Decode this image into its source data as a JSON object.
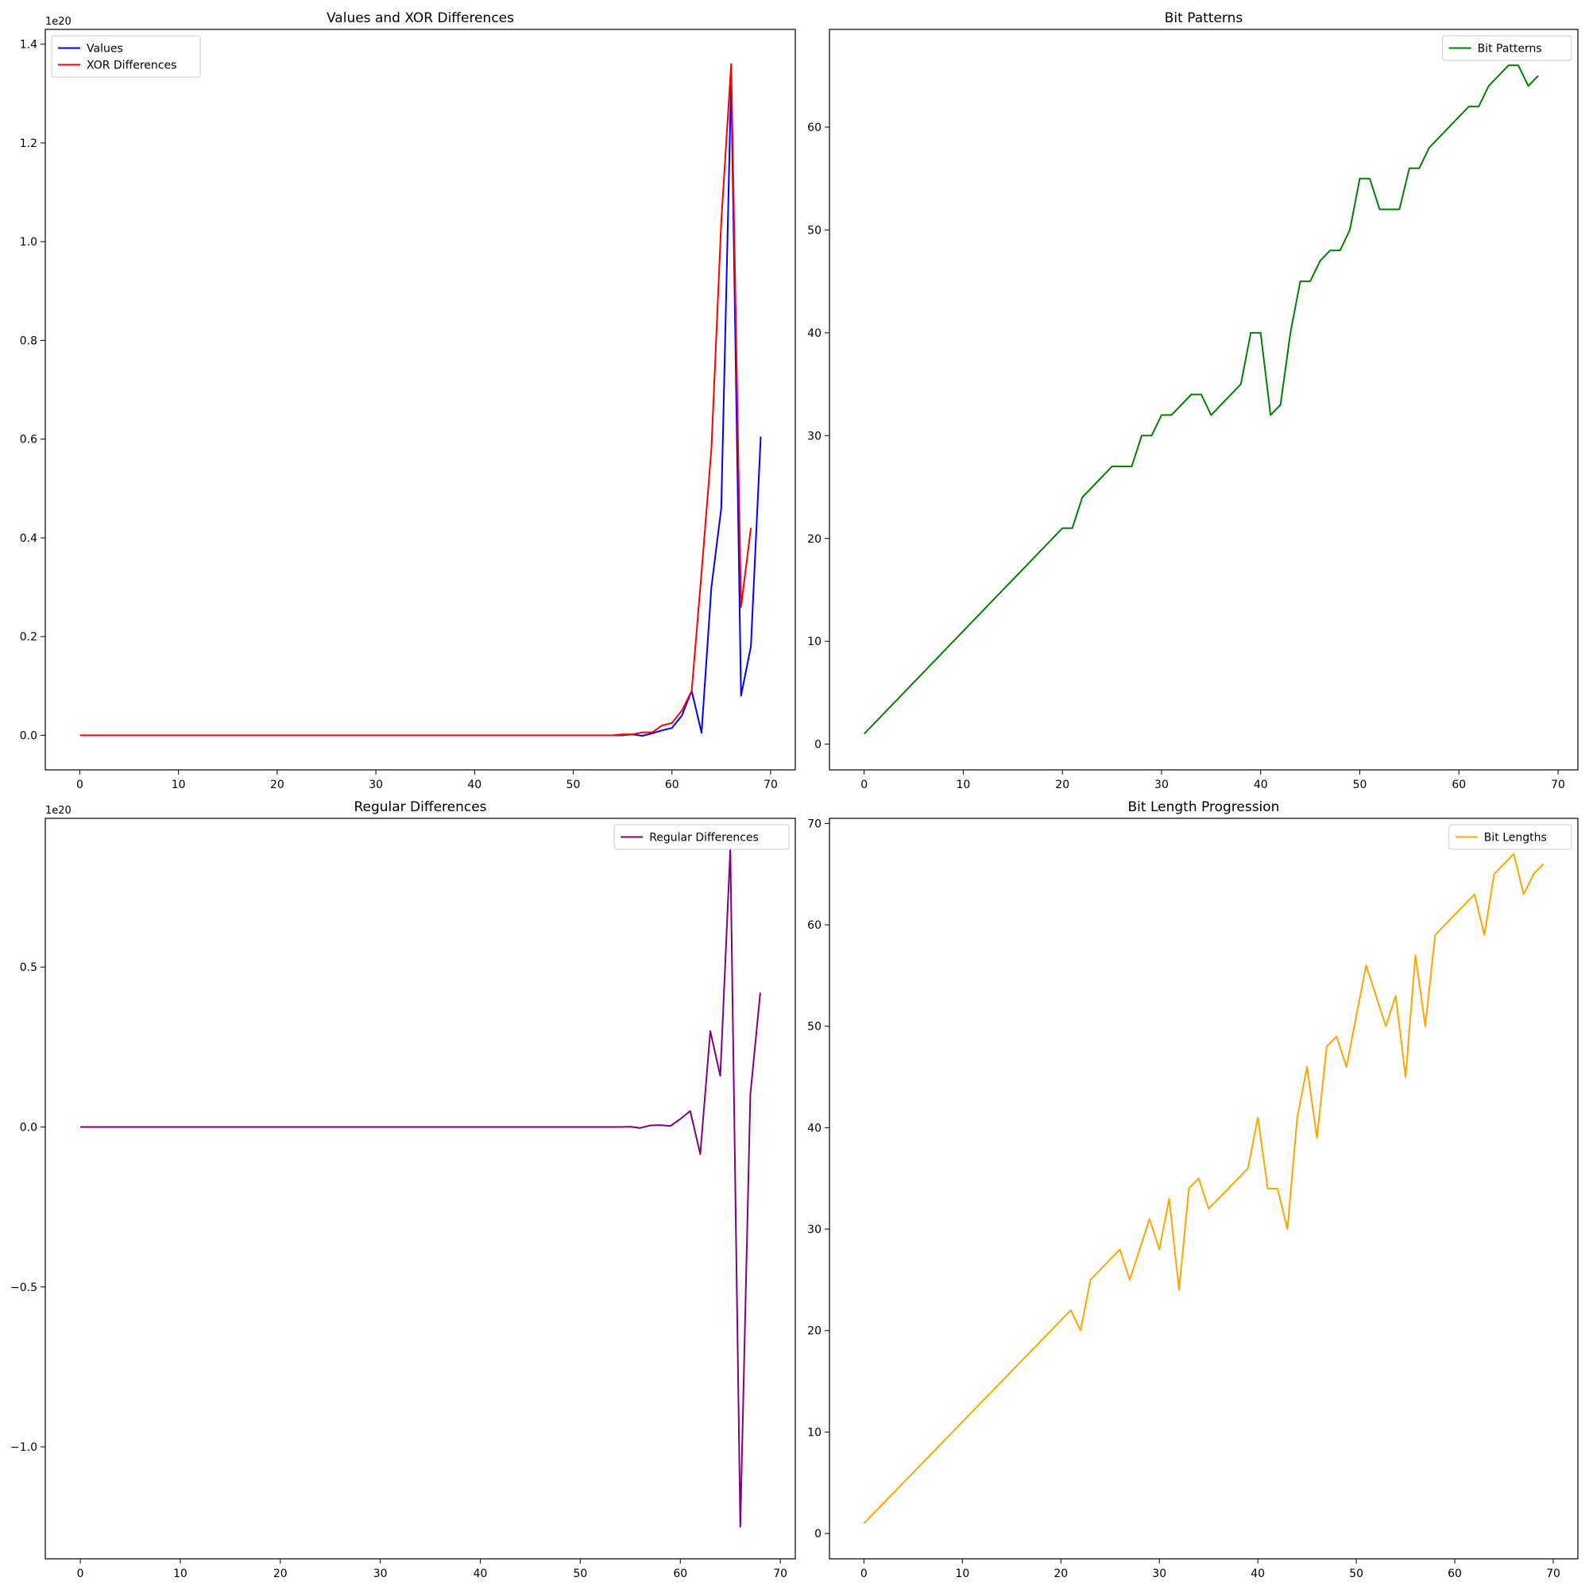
{
  "chart_data": [
    {
      "type": "line",
      "title": "Values and XOR Differences",
      "xlim": [
        -3.5,
        72.5
      ],
      "ylim": [
        -0.07,
        1.43
      ],
      "offset_text": "1e20",
      "xticks": [
        0,
        10,
        20,
        30,
        40,
        50,
        60,
        70
      ],
      "yticks": [
        0.0,
        0.2,
        0.4,
        0.6,
        0.8,
        1.0,
        1.2,
        1.4
      ],
      "ytick_labels": [
        "0.0",
        "0.2",
        "0.4",
        "0.6",
        "0.8",
        "1.0",
        "1.2",
        "1.4"
      ],
      "legend_position": "upper-left",
      "series": [
        {
          "name": "Values",
          "color": "#0000ff",
          "x": [
            0,
            50,
            52,
            54,
            55,
            56,
            57,
            58,
            59,
            60,
            61,
            62,
            63,
            64,
            65,
            66,
            67,
            68,
            69
          ],
          "y": [
            0.0,
            0.0,
            0.0,
            0.0,
            0.0,
            0.002,
            -0.001,
            0.004,
            0.01,
            0.015,
            0.04,
            0.09,
            0.005,
            0.3,
            0.46,
            1.33,
            0.08,
            0.18,
            0.605
          ]
        },
        {
          "name": "XOR Differences",
          "color": "#ff0000",
          "x": [
            0,
            50,
            52,
            54,
            55,
            56,
            57,
            58,
            59,
            60,
            61,
            62,
            63,
            64,
            65,
            66,
            67,
            68
          ],
          "y": [
            0.0,
            0.0,
            0.0,
            0.0,
            0.002,
            0.002,
            0.006,
            0.006,
            0.02,
            0.025,
            0.05,
            0.09,
            0.33,
            0.58,
            1.04,
            1.36,
            0.26,
            0.42
          ]
        }
      ]
    },
    {
      "type": "line",
      "title": "Bit Patterns",
      "xlim": [
        -3.5,
        72
      ],
      "ylim": [
        -2.5,
        69.5
      ],
      "offset_text": "",
      "xticks": [
        0,
        10,
        20,
        30,
        40,
        50,
        60,
        70
      ],
      "yticks": [
        0,
        10,
        20,
        30,
        40,
        50,
        60
      ],
      "ytick_labels": [
        "0",
        "10",
        "20",
        "30",
        "40",
        "50",
        "60"
      ],
      "legend_position": "upper-right",
      "series": [
        {
          "name": "Bit Patterns",
          "color": "#008000",
          "x": [
            0,
            20,
            21,
            22,
            25,
            26,
            27,
            28,
            29,
            30,
            31,
            33,
            34,
            35,
            38,
            39,
            40,
            41,
            42,
            43,
            44,
            45,
            46,
            47,
            48,
            49,
            50,
            51,
            52,
            53,
            54,
            55,
            56,
            57,
            61,
            62,
            63,
            65,
            66,
            67,
            68
          ],
          "y": [
            1,
            21,
            21,
            24,
            27,
            27,
            27,
            30,
            30,
            32,
            32,
            34,
            34,
            32,
            35,
            40,
            40,
            32,
            33,
            40,
            45,
            45,
            47,
            48,
            48,
            50,
            55,
            55,
            52,
            52,
            52,
            56,
            56,
            58,
            62,
            62,
            64,
            66,
            66,
            64,
            65
          ]
        }
      ]
    },
    {
      "type": "line",
      "title": "Regular Differences",
      "xlim": [
        -3.5,
        71.5
      ],
      "ylim": [
        -1.35,
        0.965
      ],
      "offset_text": "1e20",
      "xticks": [
        0,
        10,
        20,
        30,
        40,
        50,
        60,
        70
      ],
      "yticks": [
        -1.0,
        -0.5,
        0.0,
        0.5
      ],
      "ytick_labels": [
        "−1.0",
        "−0.5",
        "0.0",
        "0.5"
      ],
      "legend_position": "upper-right",
      "series": [
        {
          "name": "Regular Differences",
          "color": "#800080",
          "x": [
            0,
            50,
            52,
            54,
            55,
            56,
            57,
            58,
            59,
            60,
            61,
            62,
            63,
            64,
            65,
            66,
            67,
            68
          ],
          "y": [
            0.0,
            0.0,
            0.0,
            0.0,
            0.001,
            -0.003,
            0.005,
            0.006,
            0.003,
            0.025,
            0.05,
            -0.085,
            0.3,
            0.16,
            0.87,
            -1.25,
            0.1,
            0.42
          ]
        }
      ]
    },
    {
      "type": "line",
      "title": "Bit Length Progression",
      "xlim": [
        -3.5,
        72.5
      ],
      "ylim": [
        -2.5,
        70.5
      ],
      "offset_text": "",
      "xticks": [
        0,
        10,
        20,
        30,
        40,
        50,
        60,
        70
      ],
      "yticks": [
        0,
        10,
        20,
        30,
        40,
        50,
        60,
        70
      ],
      "ytick_labels": [
        "0",
        "10",
        "20",
        "30",
        "40",
        "50",
        "60",
        "70"
      ],
      "legend_position": "upper-right",
      "series": [
        {
          "name": "Bit Lengths",
          "color": "#ffa500",
          "x": [
            0,
            21,
            22,
            23,
            26,
            27,
            29,
            30,
            31,
            32,
            33,
            34,
            35,
            39,
            40,
            41,
            42,
            43,
            44,
            45,
            46,
            47,
            48,
            49,
            51,
            53,
            54,
            55,
            56,
            57,
            58,
            62,
            63,
            64,
            66,
            67,
            68,
            69
          ],
          "y": [
            1,
            22,
            20,
            25,
            28,
            25,
            31,
            28,
            33,
            24,
            34,
            35,
            32,
            36,
            41,
            34,
            34,
            30,
            41,
            46,
            39,
            48,
            49,
            46,
            56,
            50,
            53,
            45,
            57,
            50,
            59,
            63,
            59,
            65,
            67,
            63,
            65,
            66
          ]
        }
      ]
    }
  ]
}
